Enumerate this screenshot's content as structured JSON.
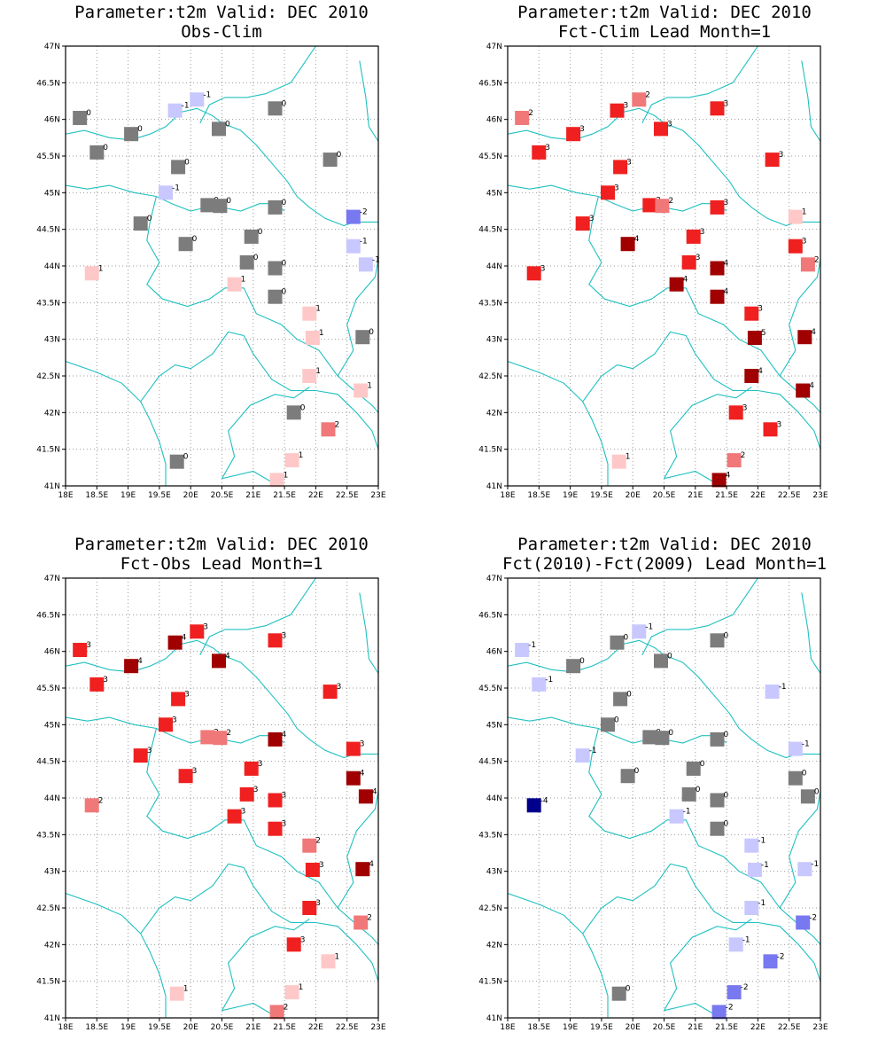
{
  "lon_ticks": [
    "18E",
    "18.5E",
    "19E",
    "19.5E",
    "20E",
    "20.5E",
    "21E",
    "21.5E",
    "22E",
    "22.5E",
    "23E"
  ],
  "lat_ticks": [
    "41N",
    "41.5N",
    "42N",
    "42.5N",
    "43N",
    "43.5N",
    "44N",
    "44.5N",
    "45N",
    "45.5N",
    "46N",
    "46.5N",
    "47N"
  ],
  "lon_range": [
    18,
    23
  ],
  "lat_range": [
    41,
    47
  ],
  "colors": {
    "-5": "#00008b",
    "-4": "#00008b",
    "-3": "#3c3cc8",
    "-2": "#7878f0",
    "-1": "#c8c8ff",
    "0": "#7c7c7c",
    "1": "#ffc8c8",
    "2": "#f07878",
    "3": "#f02020",
    "4": "#a00000",
    "5": "#a00000",
    "coast": "#20c0c0"
  },
  "stations": [
    [
      18.23,
      46.02
    ],
    [
      18.5,
      45.55
    ],
    [
      19.05,
      45.8
    ],
    [
      19.2,
      44.58
    ],
    [
      18.42,
      43.9
    ],
    [
      19.6,
      45.0
    ],
    [
      19.8,
      45.35
    ],
    [
      19.75,
      46.12
    ],
    [
      20.1,
      46.27
    ],
    [
      20.45,
      45.87
    ],
    [
      20.27,
      44.83
    ],
    [
      20.47,
      44.82
    ],
    [
      19.92,
      44.3
    ],
    [
      20.7,
      43.75
    ],
    [
      20.9,
      44.05
    ],
    [
      20.97,
      44.4
    ],
    [
      21.35,
      44.8
    ],
    [
      21.35,
      46.15
    ],
    [
      22.23,
      45.45
    ],
    [
      22.6,
      44.67
    ],
    [
      22.6,
      44.27
    ],
    [
      22.8,
      44.02
    ],
    [
      21.35,
      43.97
    ],
    [
      21.35,
      43.58
    ],
    [
      21.9,
      43.35
    ],
    [
      21.95,
      43.02
    ],
    [
      22.75,
      43.03
    ],
    [
      21.9,
      42.5
    ],
    [
      22.72,
      42.3
    ],
    [
      21.65,
      42.0
    ],
    [
      22.2,
      41.77
    ],
    [
      19.78,
      41.33
    ],
    [
      21.62,
      41.35
    ],
    [
      21.38,
      41.08
    ]
  ],
  "coastline": {
    "top": [
      [
        19.05,
        45.72
      ],
      [
        19.35,
        45.8
      ],
      [
        19.6,
        45.9
      ],
      [
        19.85,
        46.1
      ],
      [
        20.1,
        46.15
      ],
      [
        20.35,
        46.05
      ],
      [
        20.5,
        45.95
      ],
      [
        20.8,
        45.85
      ],
      [
        21.05,
        45.65
      ],
      [
        21.3,
        45.4
      ],
      [
        21.55,
        45.15
      ],
      [
        21.7,
        44.95
      ],
      [
        21.9,
        44.8
      ],
      [
        22.15,
        44.65
      ],
      [
        22.45,
        44.55
      ],
      [
        22.62,
        44.6
      ],
      [
        22.8,
        44.6
      ],
      [
        23.0,
        44.6
      ]
    ],
    "north": [
      [
        20.15,
        45.95
      ],
      [
        20.3,
        46.2
      ],
      [
        20.55,
        46.3
      ],
      [
        20.9,
        46.3
      ],
      [
        21.2,
        46.35
      ],
      [
        21.6,
        46.5
      ],
      [
        21.8,
        46.75
      ],
      [
        22.0,
        47.0
      ]
    ],
    "west": [
      [
        18.0,
        45.1
      ],
      [
        18.35,
        45.05
      ],
      [
        18.7,
        45.1
      ],
      [
        19.1,
        45.0
      ],
      [
        19.45,
        44.95
      ],
      [
        19.7,
        44.85
      ],
      [
        20.0,
        44.75
      ],
      [
        20.25,
        44.8
      ],
      [
        20.5,
        44.8
      ],
      [
        20.8,
        44.75
      ],
      [
        21.1,
        44.85
      ],
      [
        21.35,
        44.85
      ],
      [
        21.5,
        44.75
      ]
    ],
    "mid": [
      [
        19.45,
        44.95
      ],
      [
        19.35,
        44.6
      ],
      [
        19.3,
        44.35
      ],
      [
        19.5,
        44.05
      ],
      [
        19.3,
        43.75
      ],
      [
        19.55,
        43.55
      ],
      [
        19.95,
        43.45
      ],
      [
        20.3,
        43.55
      ],
      [
        20.55,
        43.7
      ],
      [
        20.85,
        43.7
      ],
      [
        21.05,
        43.35
      ],
      [
        21.45,
        43.2
      ],
      [
        21.7,
        43.0
      ],
      [
        22.05,
        42.85
      ],
      [
        22.35,
        42.5
      ],
      [
        22.55,
        42.35
      ],
      [
        22.9,
        42.1
      ],
      [
        23.0,
        42.0
      ]
    ],
    "south": [
      [
        18.0,
        42.7
      ],
      [
        18.5,
        42.55
      ],
      [
        18.9,
        42.4
      ],
      [
        19.2,
        42.15
      ],
      [
        19.35,
        41.9
      ],
      [
        19.5,
        41.6
      ],
      [
        19.6,
        41.3
      ],
      [
        19.6,
        41.0
      ]
    ],
    "balkan": [
      [
        19.2,
        42.15
      ],
      [
        19.5,
        42.5
      ],
      [
        19.75,
        42.65
      ],
      [
        20.0,
        42.6
      ],
      [
        20.35,
        42.8
      ],
      [
        20.6,
        43.1
      ],
      [
        20.85,
        43.05
      ],
      [
        21.0,
        42.8
      ],
      [
        21.3,
        42.45
      ],
      [
        21.6,
        42.3
      ],
      [
        22.0,
        42.3
      ],
      [
        22.35,
        42.25
      ],
      [
        22.65,
        42.0
      ],
      [
        22.9,
        41.75
      ],
      [
        23.0,
        41.5
      ]
    ],
    "macedonia": [
      [
        20.5,
        41.1
      ],
      [
        20.7,
        41.4
      ],
      [
        20.6,
        41.75
      ],
      [
        20.95,
        42.1
      ],
      [
        21.35,
        42.25
      ],
      [
        21.65,
        42.2
      ],
      [
        21.9,
        42.35
      ]
    ],
    "lower": [
      [
        20.5,
        41.1
      ],
      [
        21.0,
        41.2
      ],
      [
        21.4,
        41.0
      ]
    ],
    "bulgaria": [
      [
        22.35,
        42.5
      ],
      [
        22.6,
        42.85
      ],
      [
        22.5,
        43.2
      ],
      [
        22.65,
        43.55
      ],
      [
        22.95,
        43.85
      ],
      [
        23.0,
        44.1
      ]
    ],
    "east": [
      [
        22.7,
        46.8
      ],
      [
        22.8,
        46.3
      ],
      [
        22.85,
        45.9
      ],
      [
        23.0,
        45.7
      ]
    ],
    "northwest": [
      [
        18.0,
        45.8
      ],
      [
        18.3,
        45.85
      ],
      [
        18.7,
        45.75
      ],
      [
        19.05,
        45.72
      ]
    ]
  },
  "panels": [
    {
      "title": "Parameter:t2m Valid: DEC 2010",
      "subtitle": "Obs-Clim",
      "values": [
        0,
        0,
        0,
        0,
        1,
        -1,
        0,
        -1,
        -1,
        0,
        0,
        0,
        0,
        1,
        0,
        0,
        0,
        0,
        0,
        -2,
        -1,
        -1,
        0,
        0,
        1,
        1,
        0,
        1,
        1,
        0,
        2,
        0,
        1,
        1
      ]
    },
    {
      "title": "Parameter:t2m Valid: DEC 2010",
      "subtitle": "Fct-Clim Lead Month=1",
      "values": [
        2,
        3,
        3,
        3,
        3,
        3,
        3,
        3,
        2,
        3,
        3,
        2,
        4,
        4,
        3,
        3,
        3,
        3,
        3,
        1,
        3,
        2,
        4,
        4,
        3,
        5,
        4,
        4,
        4,
        3,
        3,
        1,
        2,
        4
      ]
    },
    {
      "title": "Parameter:t2m Valid: DEC 2010",
      "subtitle": "Fct-Obs Lead Month=1",
      "values": [
        3,
        3,
        4,
        3,
        2,
        3,
        3,
        4,
        3,
        4,
        2,
        2,
        3,
        3,
        3,
        3,
        4,
        3,
        3,
        3,
        4,
        4,
        3,
        3,
        2,
        3,
        4,
        3,
        2,
        3,
        1,
        1,
        1,
        2
      ]
    },
    {
      "title": "Parameter:t2m Valid: DEC 2010",
      "subtitle": "Fct(2010)-Fct(2009) Lead Month=1",
      "values": [
        -1,
        -1,
        0,
        -1,
        -4,
        0,
        0,
        0,
        -1,
        0,
        0,
        0,
        0,
        -1,
        0,
        0,
        0,
        0,
        -1,
        -1,
        0,
        0,
        0,
        0,
        -1,
        -1,
        -1,
        -1,
        -2,
        -1,
        -2,
        0,
        -2,
        -2
      ]
    }
  ]
}
